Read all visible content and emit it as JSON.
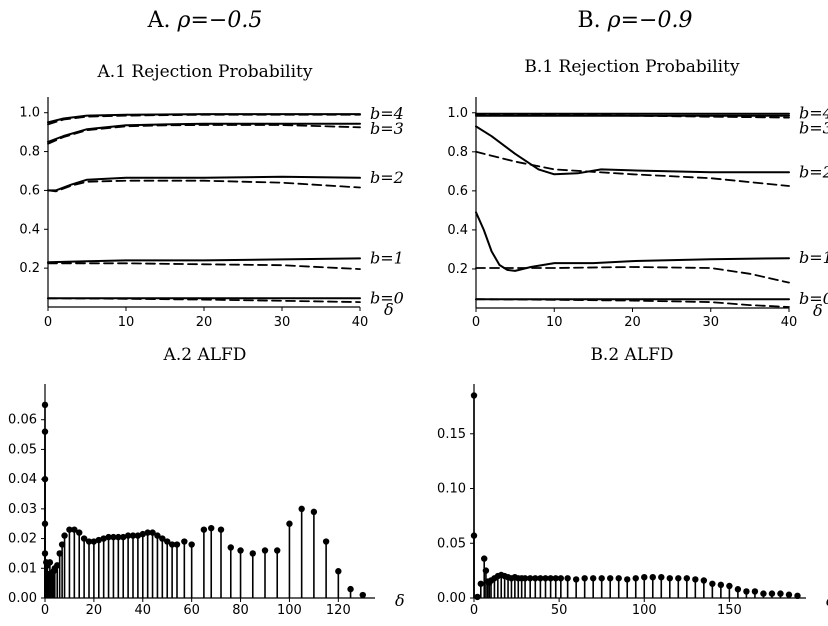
{
  "panels": {
    "A": {
      "prefix": "A. ",
      "rho": "ρ=−0.5"
    },
    "B": {
      "prefix": "B. ",
      "rho": "ρ=−0.9"
    }
  },
  "chart_data": [
    {
      "id": "A1",
      "type": "line",
      "title": "A.1 Rejection Probability",
      "xlabel": "δ",
      "ylabel": "",
      "xlim": [
        0,
        40
      ],
      "ylim": [
        0,
        1.05
      ],
      "xticks": [
        0,
        10,
        20,
        30,
        40
      ],
      "xtick_labels": [
        "0",
        "10",
        "20",
        "30",
        "40"
      ],
      "yticks": [
        0.2,
        0.4,
        0.6,
        0.8,
        1.0
      ],
      "ytick_labels": [
        "0.2",
        "0.4",
        "0.6",
        "0.8",
        "1.0"
      ],
      "grid": false,
      "curve_labels": [
        "b=4",
        "b=3",
        "b=2",
        "b=1",
        "b=0"
      ],
      "series": [
        {
          "label_index": 0,
          "style": "solid",
          "x": [
            0,
            2,
            5,
            10,
            20,
            30,
            40
          ],
          "y": [
            0.95,
            0.97,
            0.985,
            0.99,
            0.993,
            0.993,
            0.993
          ]
        },
        {
          "label_index": 0,
          "style": "dashed",
          "x": [
            0,
            2,
            5,
            10,
            20,
            30,
            40
          ],
          "y": [
            0.94,
            0.965,
            0.98,
            0.985,
            0.99,
            0.99,
            0.99
          ]
        },
        {
          "label_index": 1,
          "style": "solid",
          "x": [
            0,
            2,
            5,
            10,
            15,
            20,
            30,
            40
          ],
          "y": [
            0.85,
            0.88,
            0.915,
            0.935,
            0.94,
            0.943,
            0.943,
            0.943
          ]
        },
        {
          "label_index": 1,
          "style": "dashed",
          "x": [
            0,
            2,
            5,
            10,
            15,
            20,
            30,
            40
          ],
          "y": [
            0.84,
            0.875,
            0.91,
            0.93,
            0.935,
            0.937,
            0.937,
            0.925
          ]
        },
        {
          "label_index": 2,
          "style": "solid",
          "x": [
            0,
            1,
            3,
            5,
            10,
            20,
            30,
            40
          ],
          "y": [
            0.6,
            0.6,
            0.63,
            0.655,
            0.665,
            0.665,
            0.67,
            0.665
          ]
        },
        {
          "label_index": 2,
          "style": "dashed",
          "x": [
            0,
            1,
            3,
            5,
            10,
            20,
            30,
            40
          ],
          "y": [
            0.6,
            0.595,
            0.625,
            0.645,
            0.65,
            0.65,
            0.64,
            0.615
          ]
        },
        {
          "label_index": 3,
          "style": "solid",
          "x": [
            0,
            5,
            10,
            20,
            30,
            40
          ],
          "y": [
            0.23,
            0.235,
            0.24,
            0.24,
            0.245,
            0.25
          ]
        },
        {
          "label_index": 3,
          "style": "dashed",
          "x": [
            0,
            5,
            10,
            20,
            30,
            40
          ],
          "y": [
            0.225,
            0.225,
            0.225,
            0.22,
            0.215,
            0.195
          ]
        },
        {
          "label_index": 4,
          "style": "solid",
          "x": [
            0,
            10,
            20,
            30,
            40
          ],
          "y": [
            0.045,
            0.045,
            0.045,
            0.045,
            0.045
          ]
        },
        {
          "label_index": 4,
          "style": "dashed",
          "x": [
            0,
            10,
            20,
            30,
            40
          ],
          "y": [
            0.045,
            0.042,
            0.038,
            0.032,
            0.025
          ]
        }
      ]
    },
    {
      "id": "B1",
      "type": "line",
      "title": "B.1 Rejection Probability",
      "xlabel": "δ",
      "ylabel": "",
      "xlim": [
        0,
        40
      ],
      "ylim": [
        0,
        1.05
      ],
      "xticks": [
        0,
        10,
        20,
        30,
        40
      ],
      "xtick_labels": [
        "0",
        "10",
        "20",
        "30",
        "40"
      ],
      "yticks": [
        0.2,
        0.4,
        0.6,
        0.8,
        1.0
      ],
      "ytick_labels": [
        "0.2",
        "0.4",
        "0.6",
        "0.8",
        "1.0"
      ],
      "grid": false,
      "curve_labels": [
        "b=4",
        "b=3",
        "b=2",
        "b=1",
        "b=0"
      ],
      "series": [
        {
          "label_index": 0,
          "style": "solid",
          "x": [
            0,
            10,
            20,
            30,
            40
          ],
          "y": [
            0.995,
            0.995,
            0.995,
            0.995,
            0.995
          ]
        },
        {
          "label_index": 0,
          "style": "dashed",
          "x": [
            0,
            10,
            20,
            30,
            40
          ],
          "y": [
            0.99,
            0.99,
            0.985,
            0.98,
            0.975
          ]
        },
        {
          "label_index": 1,
          "style": "solid",
          "x": [
            0,
            10,
            20,
            30,
            40
          ],
          "y": [
            0.985,
            0.985,
            0.985,
            0.985,
            0.985
          ]
        },
        {
          "label_index": 2,
          "style": "solid",
          "x": [
            0,
            2,
            5,
            8,
            10,
            13,
            16,
            20,
            30,
            40
          ],
          "y": [
            0.93,
            0.88,
            0.79,
            0.71,
            0.685,
            0.69,
            0.71,
            0.705,
            0.695,
            0.695
          ]
        },
        {
          "label_index": 2,
          "style": "dashed",
          "x": [
            0,
            5,
            10,
            20,
            30,
            40
          ],
          "y": [
            0.8,
            0.75,
            0.71,
            0.685,
            0.665,
            0.625
          ]
        },
        {
          "label_index": 3,
          "style": "solid",
          "x": [
            0,
            1,
            2,
            3,
            4,
            5,
            7,
            10,
            15,
            20,
            30,
            40
          ],
          "y": [
            0.49,
            0.4,
            0.29,
            0.22,
            0.195,
            0.19,
            0.21,
            0.23,
            0.23,
            0.24,
            0.25,
            0.255
          ]
        },
        {
          "label_index": 3,
          "style": "dashed",
          "x": [
            0,
            10,
            20,
            30,
            35,
            40
          ],
          "y": [
            0.205,
            0.205,
            0.21,
            0.205,
            0.175,
            0.13
          ]
        },
        {
          "label_index": 4,
          "style": "solid",
          "x": [
            0,
            10,
            20,
            30,
            40
          ],
          "y": [
            0.045,
            0.045,
            0.045,
            0.045,
            0.045
          ]
        },
        {
          "label_index": 4,
          "style": "dashed",
          "x": [
            0,
            10,
            20,
            30,
            35,
            40
          ],
          "y": [
            0.045,
            0.042,
            0.038,
            0.03,
            0.015,
            0.005
          ]
        }
      ]
    },
    {
      "id": "A2",
      "type": "bar",
      "title": "A.2 ALFD",
      "xlabel": "δ",
      "ylabel": "",
      "xlim": [
        0,
        135
      ],
      "ylim": [
        0,
        0.07
      ],
      "xticks": [
        0,
        20,
        40,
        60,
        80,
        100,
        120
      ],
      "xtick_labels": [
        "0",
        "20",
        "40",
        "60",
        "80",
        "100",
        "120"
      ],
      "yticks": [
        0,
        0.01,
        0.02,
        0.03,
        0.04,
        0.05,
        0.06
      ],
      "ytick_labels": [
        "0.00",
        "0.01",
        "0.02",
        "0.03",
        "0.04",
        "0.05",
        "0.06"
      ],
      "grid": false,
      "x": [
        0,
        0,
        0,
        0,
        0,
        0.5,
        1,
        1.5,
        2,
        2.5,
        3,
        3.5,
        4,
        5,
        6,
        7,
        8,
        10,
        12,
        14,
        16,
        18,
        20,
        22,
        24,
        26,
        28,
        30,
        32,
        34,
        36,
        38,
        40,
        42,
        44,
        46,
        48,
        50,
        52,
        54,
        57,
        60,
        65,
        68,
        72,
        76,
        80,
        85,
        90,
        95,
        100,
        105,
        110,
        115,
        120,
        125,
        130
      ],
      "values": [
        0.065,
        0.056,
        0.04,
        0.025,
        0.015,
        0.012,
        0.011,
        0.008,
        0.012,
        0.007,
        0.008,
        0.009,
        0.01,
        0.011,
        0.015,
        0.018,
        0.021,
        0.023,
        0.023,
        0.022,
        0.02,
        0.019,
        0.019,
        0.0195,
        0.02,
        0.0205,
        0.0205,
        0.0205,
        0.0205,
        0.021,
        0.021,
        0.021,
        0.0215,
        0.022,
        0.022,
        0.021,
        0.02,
        0.019,
        0.018,
        0.018,
        0.019,
        0.018,
        0.023,
        0.0235,
        0.023,
        0.017,
        0.016,
        0.015,
        0.016,
        0.016,
        0.025,
        0.03,
        0.029,
        0.019,
        0.009,
        0.003,
        0.001
      ]
    },
    {
      "id": "B2",
      "type": "bar",
      "title": "B.2 ALFD",
      "xlabel": "δ",
      "ylabel": "",
      "xlim": [
        0,
        195
      ],
      "ylim": [
        0,
        0.19
      ],
      "xticks": [
        0,
        50,
        100,
        150
      ],
      "xtick_labels": [
        "0",
        "50",
        "100",
        "150"
      ],
      "yticks": [
        0,
        0.05,
        0.1,
        0.15
      ],
      "ytick_labels": [
        "0.00",
        "0.05",
        "0.10",
        "0.15"
      ],
      "grid": false,
      "x": [
        0,
        0,
        2,
        4,
        6,
        7,
        8,
        9,
        10,
        12,
        14,
        16,
        18,
        20,
        22,
        24,
        26,
        28,
        30,
        33,
        36,
        39,
        42,
        45,
        48,
        51,
        55,
        60,
        65,
        70,
        75,
        80,
        85,
        90,
        95,
        100,
        105,
        110,
        115,
        120,
        125,
        130,
        135,
        140,
        145,
        150,
        155,
        160,
        165,
        170,
        175,
        180,
        185,
        190
      ],
      "values": [
        0.185,
        0.057,
        0.001,
        0.013,
        0.036,
        0.025,
        0.015,
        0.014,
        0.016,
        0.018,
        0.02,
        0.021,
        0.02,
        0.019,
        0.018,
        0.019,
        0.018,
        0.018,
        0.018,
        0.018,
        0.018,
        0.018,
        0.018,
        0.018,
        0.018,
        0.018,
        0.018,
        0.017,
        0.018,
        0.018,
        0.018,
        0.018,
        0.018,
        0.017,
        0.018,
        0.019,
        0.019,
        0.019,
        0.018,
        0.018,
        0.018,
        0.017,
        0.016,
        0.013,
        0.012,
        0.011,
        0.008,
        0.006,
        0.006,
        0.004,
        0.004,
        0.004,
        0.003,
        0.002
      ]
    }
  ]
}
